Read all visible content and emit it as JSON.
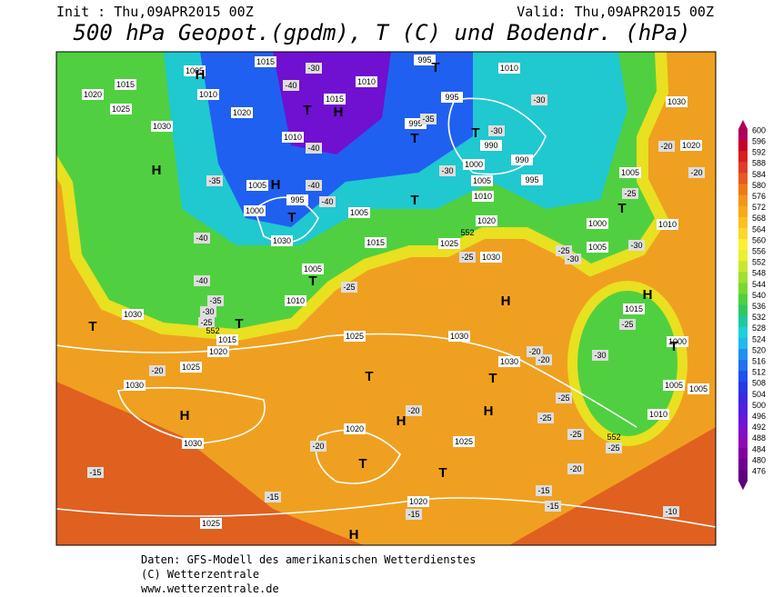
{
  "header": {
    "init": "Init : Thu,09APR2015 00Z",
    "valid": "Valid: Thu,09APR2015 00Z",
    "title": "500 hPa Geopot.(gpdm), T (C) und Bodendr. (hPa)"
  },
  "map": {
    "pressure_labels": [
      1015,
      995,
      1010,
      1005,
      1010,
      1015,
      1020,
      1010,
      1025,
      1020,
      1015,
      1030,
      995,
      995,
      990,
      1010,
      990,
      1000,
      1005,
      995,
      1005,
      995,
      1000,
      1010,
      1020,
      1005,
      1030,
      1025,
      1015,
      1030,
      1005,
      1010,
      1030,
      1020,
      1015,
      1025,
      1030,
      1025,
      1030,
      1030,
      1030,
      1020,
      1025,
      1025,
      1020,
      1005,
      1000,
      1005,
      1010,
      1030,
      1020,
      1015,
      1000,
      1005,
      1005,
      1010
    ],
    "temperature_labels": [
      -30,
      -40,
      -35,
      -30,
      -30,
      -40,
      -35,
      -30,
      -40,
      -40,
      -40,
      -25,
      -20,
      -20,
      -25,
      -30,
      -30,
      -40,
      -35,
      -30,
      -25,
      -25,
      -25,
      -20,
      -20,
      -20,
      -25,
      -30,
      -25,
      -20,
      -25,
      -25,
      -25,
      -20,
      -20,
      -15,
      -15,
      -15,
      -15,
      -15,
      -10
    ],
    "geopotential_labels": [
      552,
      552,
      552
    ],
    "centers": [
      "H",
      "H",
      "H",
      "H",
      "H",
      "H",
      "H",
      "H",
      "H",
      "H",
      "T",
      "T",
      "T",
      "T",
      "T",
      "T",
      "T",
      "T",
      "T",
      "T",
      "T",
      "T",
      "T",
      "T",
      "T"
    ]
  },
  "colorbar": {
    "values": [
      600,
      596,
      592,
      588,
      584,
      580,
      576,
      572,
      568,
      564,
      560,
      556,
      552,
      548,
      544,
      540,
      536,
      532,
      528,
      524,
      520,
      516,
      512,
      508,
      504,
      500,
      496,
      492,
      488,
      484,
      480,
      476
    ],
    "colors": [
      "#b0005a",
      "#c8002a",
      "#d81e1e",
      "#e03c28",
      "#e85a20",
      "#f07818",
      "#f49418",
      "#f8a818",
      "#fcc020",
      "#fcd828",
      "#fcf030",
      "#e8f030",
      "#c8e830",
      "#a0e030",
      "#78d830",
      "#50d040",
      "#30c860",
      "#20c8a0",
      "#20d0d8",
      "#20b8f0",
      "#2090f0",
      "#2070f0",
      "#2050f0",
      "#2838e8",
      "#3c28e0",
      "#5020e0",
      "#6818d8",
      "#8010c8",
      "#9008b8",
      "#8000a0",
      "#700090",
      "#600080"
    ]
  },
  "footer": {
    "lines": [
      "Daten: GFS-Modell des amerikanischen Wetterdienstes",
      "(C) Wetterzentrale",
      "www.wetterzentrale.de"
    ]
  }
}
